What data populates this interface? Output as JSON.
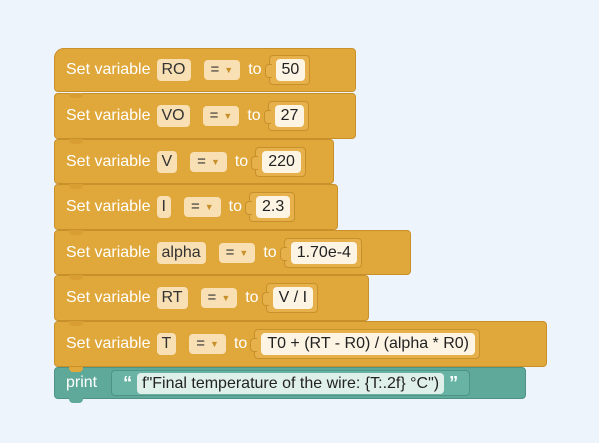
{
  "blocks": [
    {
      "keyword": "Set variable",
      "name": "RO",
      "op": "=",
      "to_label": "to",
      "value": "50"
    },
    {
      "keyword": "Set variable",
      "name": "VO",
      "op": "=",
      "to_label": "to",
      "value": "27"
    },
    {
      "keyword": "Set variable",
      "name": "V",
      "op": "=",
      "to_label": "to",
      "value": "220"
    },
    {
      "keyword": "Set variable",
      "name": "I",
      "op": "=",
      "to_label": "to",
      "value": "2.3"
    },
    {
      "keyword": "Set variable",
      "name": "alpha",
      "op": "=",
      "to_label": "to",
      "value": "1.70e-4"
    },
    {
      "keyword": "Set variable",
      "name": "RT",
      "op": "=",
      "to_label": "to",
      "value": "V / I"
    },
    {
      "keyword": "Set variable",
      "name": "T",
      "op": "=",
      "to_label": "to",
      "value": "T0 + (RT - R0) / (alpha * R0)"
    }
  ],
  "print_block": {
    "keyword": "print",
    "open_quote": "“",
    "close_quote": "”",
    "text": "f\"Final temperature of the wire: {T:.2f} °C\")"
  },
  "colors": {
    "variable_block": "#e0a83a",
    "print_block": "#5ea99a",
    "workspace": "#eef4fc"
  }
}
